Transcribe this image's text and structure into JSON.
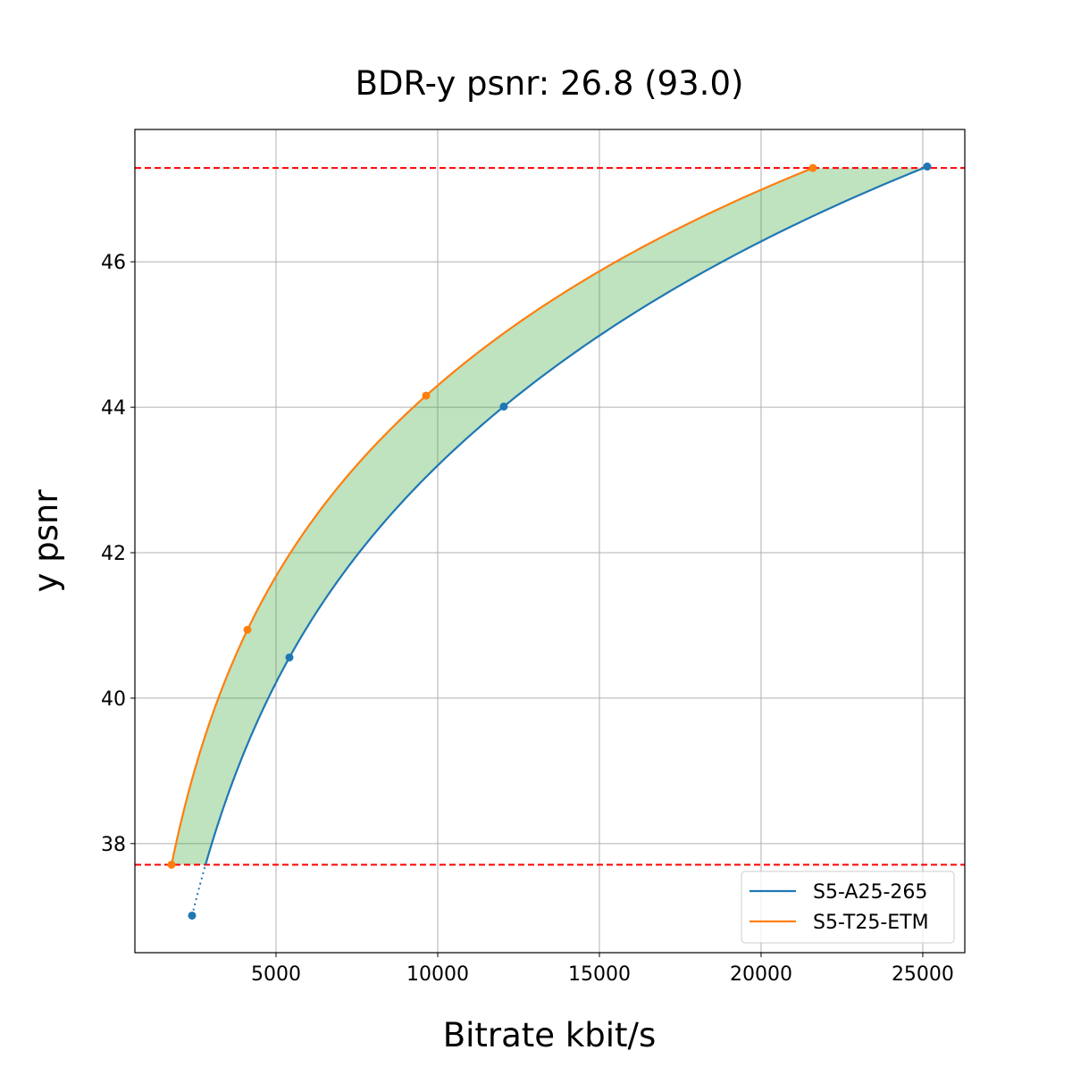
{
  "chart_data": {
    "type": "line",
    "title": "BDR-y psnr: 26.8 (93.0)",
    "xlabel": "Bitrate kbit/s",
    "ylabel": "y psnr",
    "xlim": [
      635,
      26300
    ],
    "ylim": [
      36.5,
      47.82
    ],
    "grid": true,
    "legend_position": "lower right",
    "xticks": [
      "5000",
      "10000",
      "15000",
      "20000",
      "25000"
    ],
    "xtick_values": [
      5000,
      10000,
      15000,
      20000,
      25000
    ],
    "yticks": [
      "38",
      "40",
      "42",
      "44",
      "46"
    ],
    "ytick_values": [
      38,
      40,
      42,
      44,
      46
    ],
    "series": [
      {
        "name": "S5-A25-265",
        "color": "#1f77b4",
        "x": [
          2403,
          5414,
          12044,
          25138
        ],
        "y": [
          37.01,
          40.56,
          44.01,
          47.31
        ]
      },
      {
        "name": "S5-T25-ETM",
        "color": "#ff7f0e",
        "x": [
          1768,
          4116,
          9641,
          21602
        ],
        "y": [
          37.71,
          40.94,
          44.16,
          47.29
        ]
      }
    ],
    "reference_lines": {
      "y": [
        37.71,
        47.29
      ],
      "color": "#ff0000",
      "style": "dashed"
    },
    "fill_between": {
      "y_range": [
        37.71,
        47.29
      ],
      "color": "#2ca02c",
      "alpha": 0.3
    }
  }
}
